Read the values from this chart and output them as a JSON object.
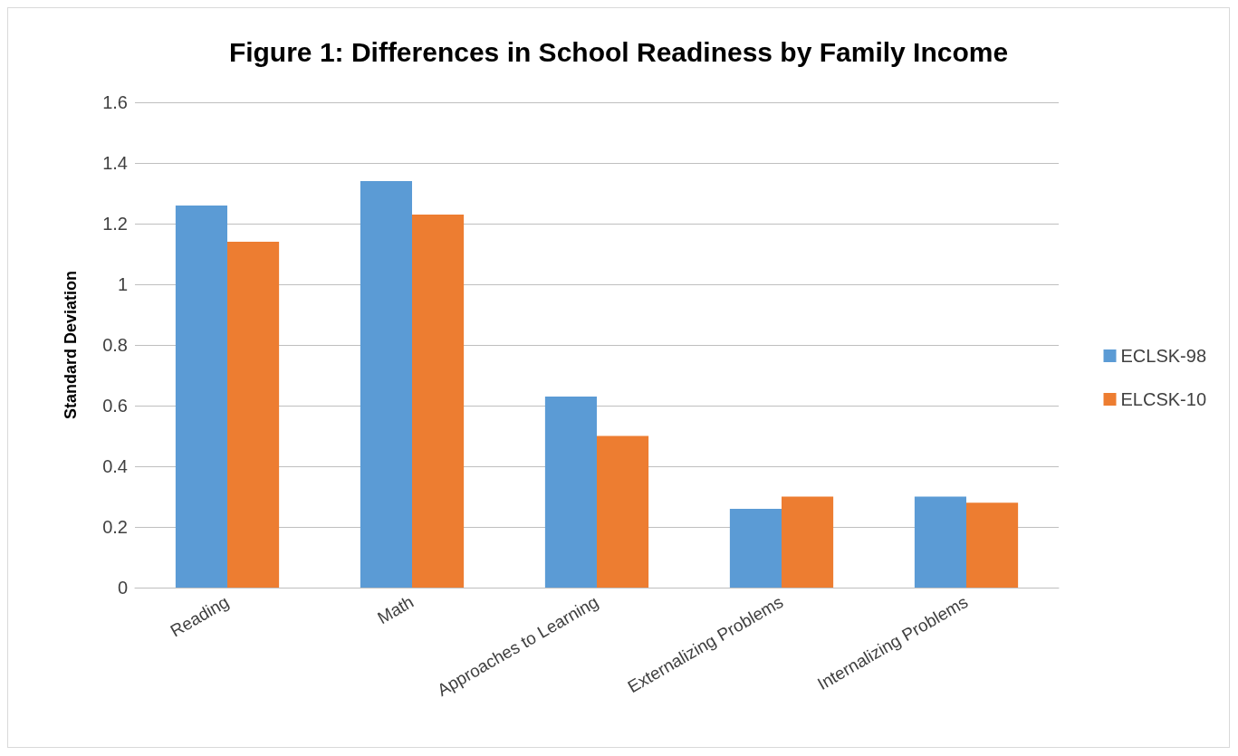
{
  "chart_data": {
    "type": "bar",
    "title": "Figure 1: Differences in School Readiness by Family Income",
    "ylabel": "Standard Deviation",
    "categories": [
      "Reading",
      "Math",
      "Approaches to Learning",
      "Externalizing Problems",
      "Internalizing Problems"
    ],
    "series": [
      {
        "name": "ECLSK-98",
        "color": "#5b9bd5",
        "values": [
          1.26,
          1.34,
          0.63,
          0.26,
          0.3
        ]
      },
      {
        "name": "ELCSK-10",
        "color": "#ed7d31",
        "values": [
          1.14,
          1.23,
          0.5,
          0.3,
          0.28
        ]
      }
    ],
    "ylim": [
      0,
      1.6
    ],
    "yticks": [
      0,
      0.2,
      0.4,
      0.6,
      0.8,
      1,
      1.2,
      1.4,
      1.6
    ],
    "grid": "y",
    "legend": "right"
  }
}
